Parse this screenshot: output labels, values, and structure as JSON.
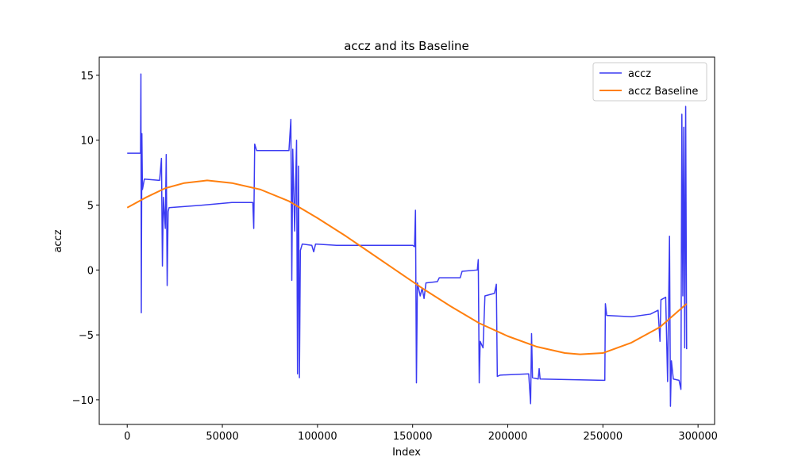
{
  "chart_data": {
    "type": "line",
    "title": "accz and its Baseline",
    "xlabel": "Index",
    "ylabel": "accz",
    "xlim": [
      -14700,
      308700
    ],
    "ylim": [
      -11.9,
      16.4
    ],
    "xticks": [
      0,
      50000,
      100000,
      150000,
      200000,
      250000,
      300000
    ],
    "yticks": [
      {
        "value": -10,
        "label": "−10"
      },
      {
        "value": -5,
        "label": "−5"
      },
      0,
      5,
      10,
      15
    ],
    "legend": "upper right",
    "series": [
      {
        "name": "accz",
        "color": "#3b3bf2",
        "width": 1.5,
        "x": [
          0,
          7000,
          7200,
          7400,
          7700,
          8000,
          9000,
          17000,
          18000,
          18500,
          19000,
          20000,
          20500,
          21000,
          21500,
          22000,
          40000,
          55000,
          66000,
          66500,
          67000,
          68000,
          85000,
          86000,
          86500,
          87000,
          88000,
          89000,
          89500,
          90000,
          90500,
          91000,
          92000,
          97000,
          98000,
          99000,
          110000,
          150000,
          151000,
          151500,
          152000,
          152500,
          154000,
          155000,
          156000,
          157000,
          163000,
          164000,
          175000,
          176000,
          184000,
          184500,
          185000,
          185500,
          187000,
          188000,
          193000,
          194000,
          194500,
          196000,
          211000,
          212000,
          212500,
          213000,
          216000,
          216500,
          217000,
          250000,
          251000,
          251300,
          252000,
          265000,
          275000,
          279000,
          280000,
          280500,
          283000,
          284000,
          285000,
          285500,
          286000,
          287000,
          290000,
          291000,
          291500,
          292000,
          292500,
          293000,
          293500,
          294000
        ],
        "values": [
          9.0,
          9.0,
          15.1,
          -3.3,
          10.5,
          6.2,
          7.0,
          6.9,
          8.6,
          0.3,
          5.6,
          3.2,
          8.9,
          -1.2,
          4.5,
          4.8,
          5.0,
          5.2,
          5.2,
          3.2,
          9.7,
          9.2,
          9.2,
          11.6,
          -0.8,
          9.3,
          3.0,
          10.0,
          -8.0,
          8.0,
          -8.3,
          1.5,
          2.0,
          1.9,
          1.4,
          2.0,
          1.9,
          1.9,
          1.8,
          4.6,
          -8.7,
          -1.0,
          -2.0,
          -1.4,
          -2.2,
          -1.0,
          -0.9,
          -0.6,
          -0.6,
          -0.1,
          0.0,
          0.8,
          -8.7,
          -5.5,
          -6.0,
          -2.0,
          -1.8,
          -1.1,
          -8.2,
          -8.1,
          -8.0,
          -10.3,
          -4.9,
          -8.3,
          -8.4,
          -7.6,
          -8.4,
          -8.5,
          -8.5,
          -2.6,
          -3.5,
          -3.6,
          -3.4,
          -3.1,
          -5.5,
          -2.3,
          -2.1,
          -8.6,
          2.6,
          -10.5,
          -7.0,
          -8.4,
          -8.5,
          -9.2,
          12.0,
          -2.0,
          11.0,
          -6.0,
          12.6,
          -6.1
        ]
      },
      {
        "name": "accz Baseline",
        "color": "#ff7f0e",
        "width": 2,
        "x": [
          0,
          10000,
          20000,
          30000,
          42000,
          55000,
          70000,
          85000,
          100000,
          115000,
          125000,
          140000,
          155000,
          170000,
          185000,
          200000,
          215000,
          230000,
          238000,
          250000,
          265000,
          280000,
          294000
        ],
        "values": [
          4.8,
          5.6,
          6.3,
          6.7,
          6.9,
          6.7,
          6.2,
          5.3,
          4.0,
          2.6,
          1.6,
          0.1,
          -1.4,
          -2.8,
          -4.1,
          -5.1,
          -5.9,
          -6.4,
          -6.5,
          -6.4,
          -5.6,
          -4.4,
          -2.6
        ]
      }
    ]
  }
}
